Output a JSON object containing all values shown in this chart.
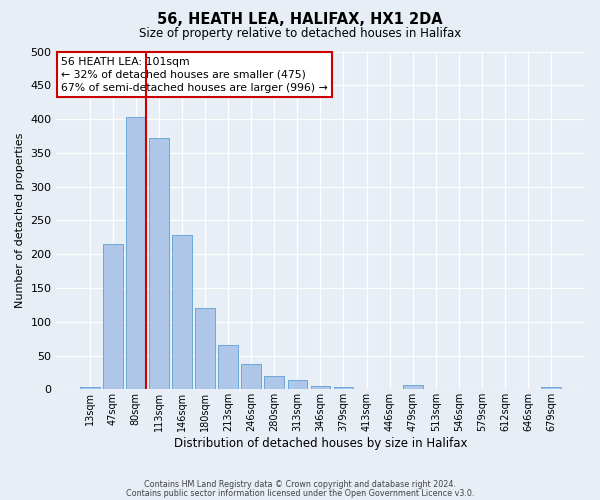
{
  "title": "56, HEATH LEA, HALIFAX, HX1 2DA",
  "subtitle": "Size of property relative to detached houses in Halifax",
  "xlabel": "Distribution of detached houses by size in Halifax",
  "ylabel": "Number of detached properties",
  "categories": [
    "13sqm",
    "47sqm",
    "80sqm",
    "113sqm",
    "146sqm",
    "180sqm",
    "213sqm",
    "246sqm",
    "280sqm",
    "313sqm",
    "346sqm",
    "379sqm",
    "413sqm",
    "446sqm",
    "479sqm",
    "513sqm",
    "546sqm",
    "579sqm",
    "612sqm",
    "646sqm",
    "679sqm"
  ],
  "values": [
    4,
    215,
    403,
    372,
    228,
    120,
    65,
    38,
    20,
    14,
    5,
    4,
    0,
    0,
    6,
    0,
    0,
    0,
    0,
    0,
    3
  ],
  "bar_color": "#aec6e8",
  "bar_edge_color": "#5a9fd4",
  "bg_color": "#e8eef5",
  "grid_color": "#ffffff",
  "vline_color": "#cc0000",
  "annotation_line1": "56 HEATH LEA: 101sqm",
  "annotation_line2": "← 32% of detached houses are smaller (475)",
  "annotation_line3": "67% of semi-detached houses are larger (996) →",
  "annotation_box_color": "#ffffff",
  "annotation_box_edge_color": "#cc0000",
  "ylim": [
    0,
    500
  ],
  "yticks": [
    0,
    50,
    100,
    150,
    200,
    250,
    300,
    350,
    400,
    450,
    500
  ],
  "footer_line1": "Contains HM Land Registry data © Crown copyright and database right 2024.",
  "footer_line2": "Contains public sector information licensed under the Open Government Licence v3.0."
}
